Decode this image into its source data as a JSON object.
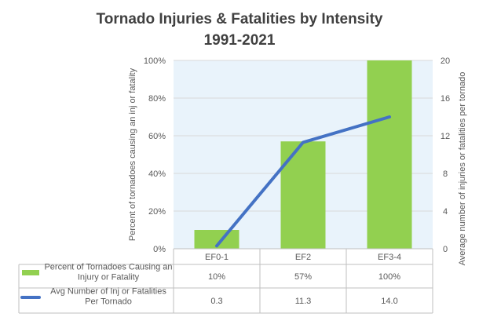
{
  "chart_data": {
    "type": "bar+line",
    "title": "Tornado Injuries & Fatalities by Intensity",
    "subtitle": "1991-2021",
    "categories": [
      "EF0-1",
      "EF2",
      "EF3-4"
    ],
    "y_left": {
      "label": "Percent of tornadoes causing an inj or fatality",
      "ticks": [
        "0%",
        "20%",
        "40%",
        "60%",
        "80%",
        "100%"
      ],
      "range": [
        0,
        100
      ]
    },
    "y_right": {
      "label": "Average number of injuries or fatalities per tornado",
      "ticks": [
        "0",
        "4",
        "8",
        "12",
        "16",
        "20"
      ],
      "range": [
        0,
        20
      ]
    },
    "series": [
      {
        "name": "Percent of Tornadoes Causing an Injury or Fatality",
        "type": "bar",
        "axis": "left",
        "color": "#92D050",
        "values": [
          10,
          57,
          100
        ],
        "labels": [
          "10%",
          "57%",
          "100%"
        ]
      },
      {
        "name": "Avg Number of Inj or Fatalities Per Tornado",
        "type": "line",
        "axis": "right",
        "color": "#4472C4",
        "values": [
          0.3,
          11.3,
          14.0
        ],
        "labels": [
          "0.3",
          "11.3",
          "14.0"
        ]
      }
    ],
    "legend_placement": "data-table-below",
    "plot_background": "#E9F3FB"
  }
}
